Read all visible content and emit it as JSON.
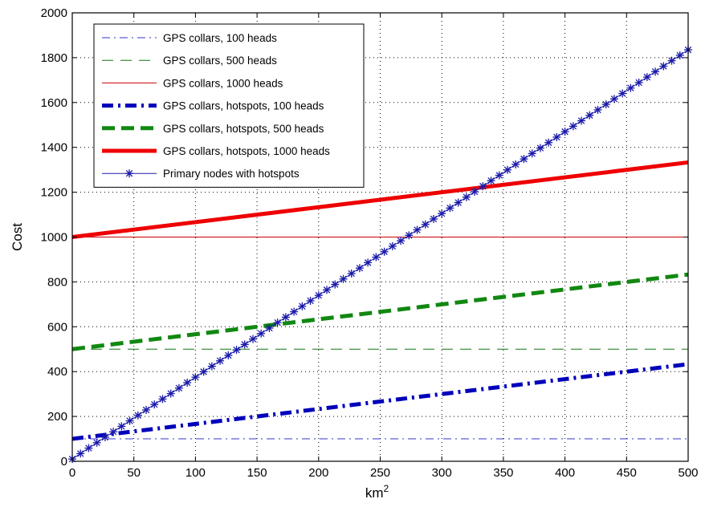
{
  "chart_data": {
    "type": "line",
    "title": "",
    "xlabel": "km",
    "xlabel_superscript": "2",
    "ylabel": "Cost",
    "xlim": [
      0,
      500
    ],
    "ylim": [
      0,
      2000
    ],
    "xticks": [
      0,
      50,
      100,
      150,
      200,
      250,
      300,
      350,
      400,
      450,
      500
    ],
    "yticks": [
      0,
      200,
      400,
      600,
      800,
      1000,
      1200,
      1400,
      1600,
      1800,
      2000
    ],
    "grid": true,
    "legend_position": "top-left",
    "series": [
      {
        "name": "GPS collars, 100 heads",
        "x": [
          0,
          500
        ],
        "y": [
          100,
          100
        ],
        "color": "#3333cc",
        "style": "dashdot",
        "width": "thin"
      },
      {
        "name": "GPS collars, 500 heads",
        "x": [
          0,
          500
        ],
        "y": [
          500,
          500
        ],
        "color": "#117711",
        "style": "dashed",
        "width": "thin"
      },
      {
        "name": "GPS collars, 1000 heads",
        "x": [
          0,
          500
        ],
        "y": [
          1000,
          1000
        ],
        "color": "#cc0000",
        "style": "solid",
        "width": "thin"
      },
      {
        "name": "GPS collars, hotspots, 100 heads",
        "x": [
          0,
          500
        ],
        "y": [
          100,
          433
        ],
        "color": "#0000bb",
        "style": "dashdot",
        "width": "thick"
      },
      {
        "name": "GPS collars, hotspots, 500 heads",
        "x": [
          0,
          500
        ],
        "y": [
          500,
          833
        ],
        "color": "#118811",
        "style": "dashed",
        "width": "thick"
      },
      {
        "name": "GPS collars, hotspots, 1000 heads",
        "x": [
          0,
          500
        ],
        "y": [
          1000,
          1333
        ],
        "color": "#ee0000",
        "style": "solid",
        "width": "thick"
      },
      {
        "name": "Primary nodes with hotspots",
        "x": [
          0,
          500
        ],
        "y": [
          10,
          1835
        ],
        "color": "#1a1aaa",
        "style": "solid-star",
        "width": "thin"
      }
    ]
  }
}
